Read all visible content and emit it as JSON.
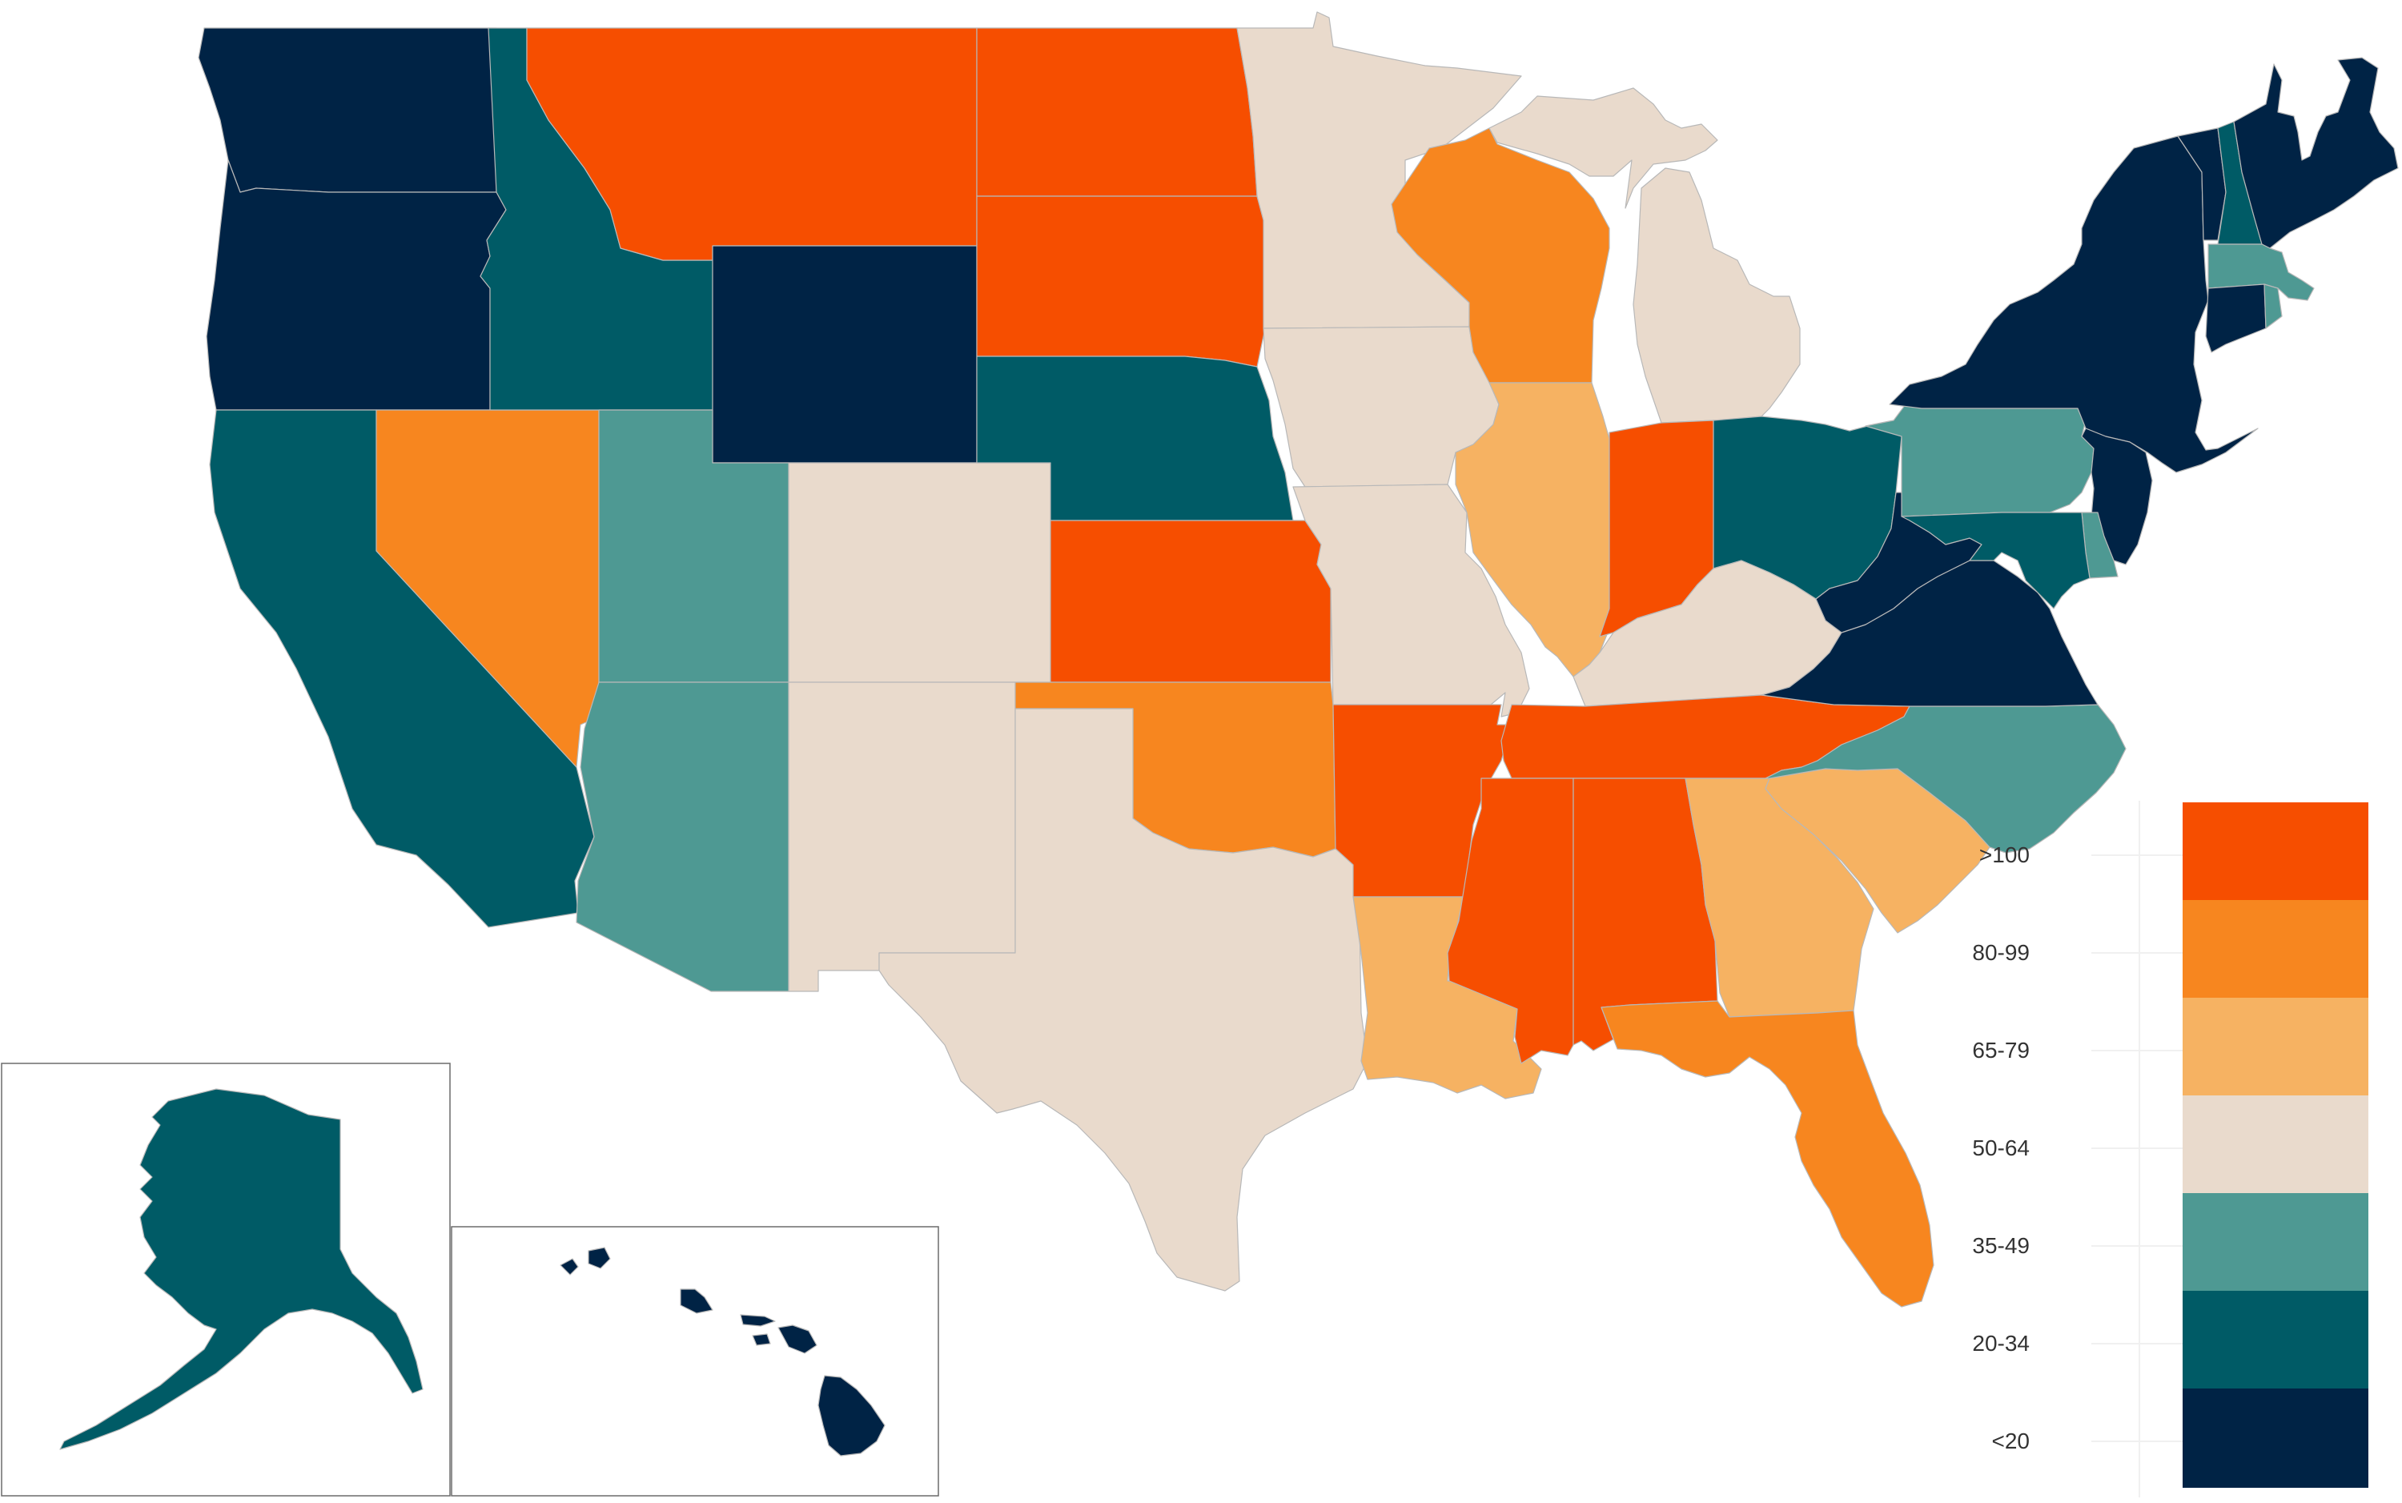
{
  "legend": {
    "buckets": [
      {
        "key": "gt100",
        "label": ">100",
        "color": "#f64e00"
      },
      {
        "key": "80_99",
        "label": "80-99",
        "color": "#f7861f"
      },
      {
        "key": "65_79",
        "label": "65-79",
        "color": "#f6b262"
      },
      {
        "key": "50_64",
        "label": "50-64",
        "color": "#e9dacc"
      },
      {
        "key": "35_49",
        "label": "35-49",
        "color": "#4e9993"
      },
      {
        "key": "20_34",
        "label": "20-34",
        "color": "#005b66"
      },
      {
        "key": "lt20",
        "label": "<20",
        "color": "#002345"
      }
    ]
  },
  "states": {
    "WA": "lt20",
    "OR": "lt20",
    "CA": "20_34",
    "NV": "80_99",
    "ID": "20_34",
    "MT": "gt100",
    "WY": "lt20",
    "UT": "35_49",
    "AZ": "35_49",
    "CO": "50_64",
    "NM": "50_64",
    "ND": "gt100",
    "SD": "gt100",
    "NE": "20_34",
    "KS": "gt100",
    "OK": "80_99",
    "TX": "50_64",
    "MN": "50_64",
    "IA": "50_64",
    "MO": "50_64",
    "AR": "gt100",
    "LA": "65_79",
    "WI": "80_99",
    "IL": "65_79",
    "MI": "50_64",
    "IN": "gt100",
    "OH": "20_34",
    "KY": "50_64",
    "TN": "gt100",
    "MS": "gt100",
    "AL": "gt100",
    "GA": "65_79",
    "FL": "80_99",
    "SC": "65_79",
    "NC": "35_49",
    "VA": "lt20",
    "WV": "lt20",
    "PA": "35_49",
    "NY": "lt20",
    "VT": "lt20",
    "NH": "20_34",
    "ME": "lt20",
    "MA": "35_49",
    "CT": "lt20",
    "RI": "35_49",
    "NJ": "lt20",
    "DE": "35_49",
    "MD": "20_34",
    "AK": "20_34",
    "HI": "lt20"
  }
}
